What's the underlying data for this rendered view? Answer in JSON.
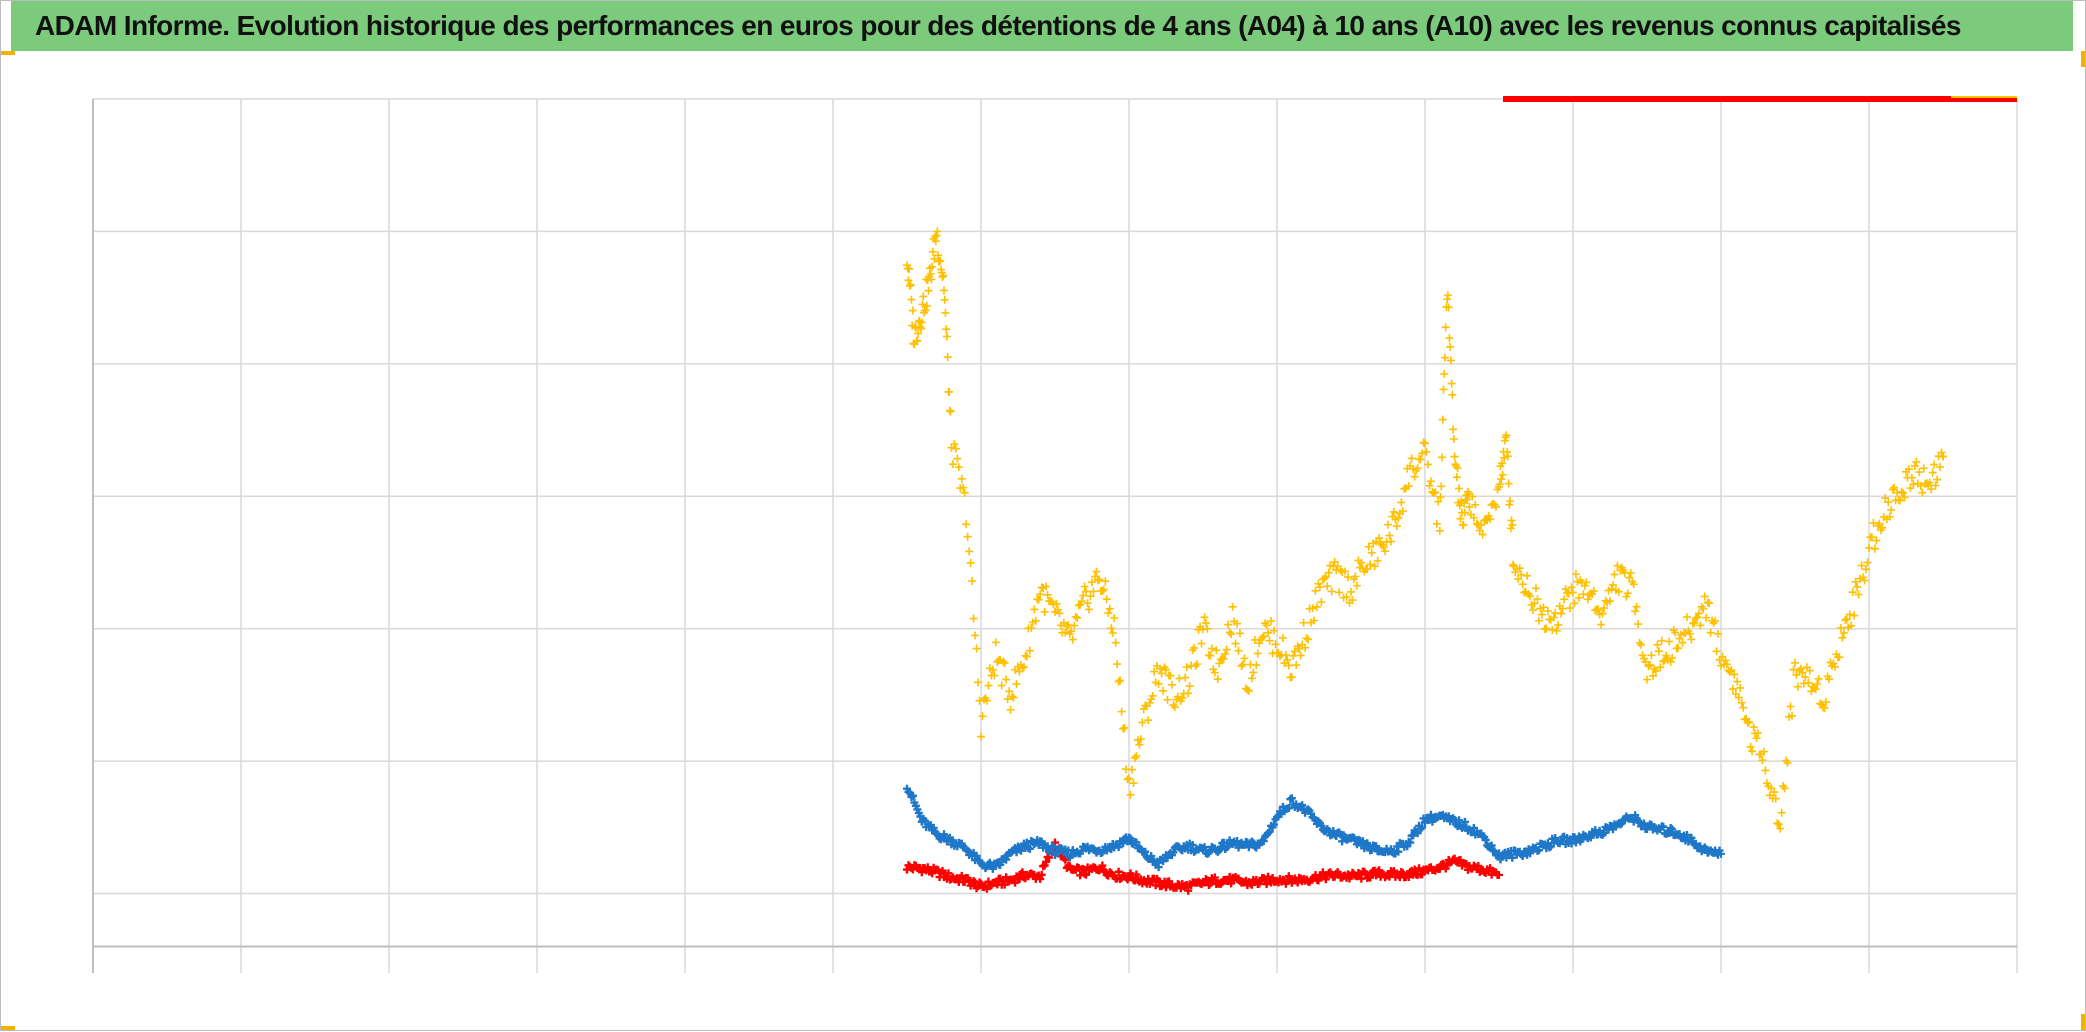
{
  "title": "ADAM Informe. Evolution historique des performances en euros pour des détentions de 4 ans (A04) à 10 ans (A10) avec les revenus connus capitalisés",
  "colors": {
    "title_bar": "#7ccb7c",
    "grid": "#d9d9d9",
    "axis": "#bfbfbf",
    "series_a": "#ff0000",
    "series_b": "#1f77c8",
    "series_c": "#ffc000"
  },
  "chart_data": {
    "type": "scatter",
    "title": "",
    "xlabel": "",
    "ylabel": "",
    "xlim": [
      0,
      13
    ],
    "ylim": [
      -0.6,
      6
    ],
    "x_gridlines": [
      0,
      1,
      2,
      3,
      4,
      5,
      6,
      7,
      8,
      9,
      10,
      11,
      12,
      13
    ],
    "y_gridlines": [
      0,
      1,
      2,
      3,
      4,
      5,
      6
    ],
    "baseline": -0.4,
    "tick_labels_visible": false,
    "marker": "plus",
    "series": [
      {
        "color": "#ff0000",
        "x": [
          5.5,
          5.6,
          5.7,
          5.8,
          5.9,
          6.0,
          6.1,
          6.2,
          6.3,
          6.4,
          6.5,
          6.6,
          6.7,
          6.8,
          6.9,
          7.0,
          7.1,
          7.2,
          7.3,
          7.4,
          7.5,
          7.6,
          7.7,
          7.8,
          7.9,
          8.0,
          8.1,
          8.2,
          8.3,
          8.4,
          8.5,
          8.6,
          8.7,
          8.8,
          8.9,
          9.0,
          9.1,
          9.2,
          9.3,
          9.4,
          9.5
        ],
        "y": [
          0.2,
          0.19,
          0.16,
          0.12,
          0.1,
          0.05,
          0.08,
          0.1,
          0.14,
          0.13,
          0.38,
          0.18,
          0.16,
          0.2,
          0.14,
          0.13,
          0.1,
          0.08,
          0.06,
          0.05,
          0.08,
          0.1,
          0.1,
          0.08,
          0.09,
          0.11,
          0.1,
          0.11,
          0.13,
          0.14,
          0.13,
          0.14,
          0.15,
          0.14,
          0.15,
          0.17,
          0.2,
          0.24,
          0.2,
          0.18,
          0.14
        ]
      },
      {
        "color": "#1f77c8",
        "x": [
          5.5,
          5.6,
          5.7,
          5.8,
          5.9,
          6.0,
          6.1,
          6.2,
          6.3,
          6.4,
          6.5,
          6.6,
          6.7,
          6.8,
          6.9,
          7.0,
          7.1,
          7.2,
          7.3,
          7.4,
          7.5,
          7.6,
          7.7,
          7.8,
          7.9,
          8.0,
          8.1,
          8.2,
          8.3,
          8.4,
          8.5,
          8.6,
          8.7,
          8.8,
          8.9,
          9.0,
          9.1,
          9.2,
          9.3,
          9.4,
          9.5,
          9.6,
          9.7,
          9.8,
          9.9,
          10.0,
          10.1,
          10.2,
          10.3,
          10.4,
          10.5,
          10.6,
          10.7,
          10.8,
          10.9,
          11.0
        ],
        "y": [
          0.82,
          0.55,
          0.45,
          0.4,
          0.34,
          0.22,
          0.2,
          0.3,
          0.36,
          0.38,
          0.32,
          0.3,
          0.34,
          0.33,
          0.36,
          0.42,
          0.3,
          0.22,
          0.32,
          0.36,
          0.32,
          0.34,
          0.38,
          0.36,
          0.38,
          0.58,
          0.7,
          0.62,
          0.5,
          0.44,
          0.4,
          0.36,
          0.32,
          0.33,
          0.4,
          0.56,
          0.58,
          0.54,
          0.5,
          0.42,
          0.28,
          0.3,
          0.32,
          0.36,
          0.4,
          0.4,
          0.44,
          0.47,
          0.52,
          0.58,
          0.5,
          0.48,
          0.46,
          0.4,
          0.32,
          0.3
        ]
      },
      {
        "color": "#ffc000",
        "x": [
          5.5,
          5.55,
          5.6,
          5.65,
          5.7,
          5.75,
          5.8,
          5.9,
          6.0,
          6.1,
          6.2,
          6.3,
          6.4,
          6.5,
          6.6,
          6.7,
          6.8,
          6.9,
          7.0,
          7.1,
          7.2,
          7.3,
          7.4,
          7.5,
          7.6,
          7.7,
          7.8,
          7.9,
          8.0,
          8.1,
          8.2,
          8.3,
          8.4,
          8.5,
          8.6,
          8.7,
          8.8,
          8.9,
          9.0,
          9.1,
          9.15,
          9.2,
          9.25,
          9.3,
          9.4,
          9.5,
          9.55,
          9.6,
          9.7,
          9.8,
          9.9,
          10.0,
          10.1,
          10.2,
          10.3,
          10.4,
          10.5,
          10.6,
          10.7,
          10.8,
          10.9,
          11.0,
          11.1,
          11.2,
          11.3,
          11.4,
          11.5,
          11.6,
          11.7,
          11.8,
          11.9,
          12.0,
          12.1,
          12.2,
          12.3,
          12.4,
          12.5
        ],
        "y": [
          4.8,
          4.2,
          4.4,
          4.6,
          5.0,
          4.6,
          3.4,
          2.9,
          1.3,
          1.8,
          1.5,
          1.8,
          2.3,
          2.1,
          1.9,
          2.2,
          2.4,
          2.0,
          0.8,
          1.3,
          1.7,
          1.5,
          1.6,
          2.0,
          1.7,
          2.1,
          1.6,
          2.0,
          1.9,
          1.7,
          2.0,
          2.3,
          2.4,
          2.3,
          2.5,
          2.6,
          2.8,
          3.2,
          3.3,
          2.8,
          4.6,
          3.3,
          2.8,
          3.0,
          2.7,
          3.1,
          3.4,
          2.5,
          2.3,
          2.1,
          2.1,
          2.3,
          2.3,
          2.1,
          2.4,
          2.3,
          1.7,
          1.8,
          1.9,
          2.0,
          2.2,
          1.8,
          1.6,
          1.2,
          1.0,
          0.5,
          1.7,
          1.6,
          1.5,
          1.9,
          2.2,
          2.6,
          2.9,
          3.0,
          3.2,
          3.1,
          3.3
        ]
      }
    ]
  }
}
